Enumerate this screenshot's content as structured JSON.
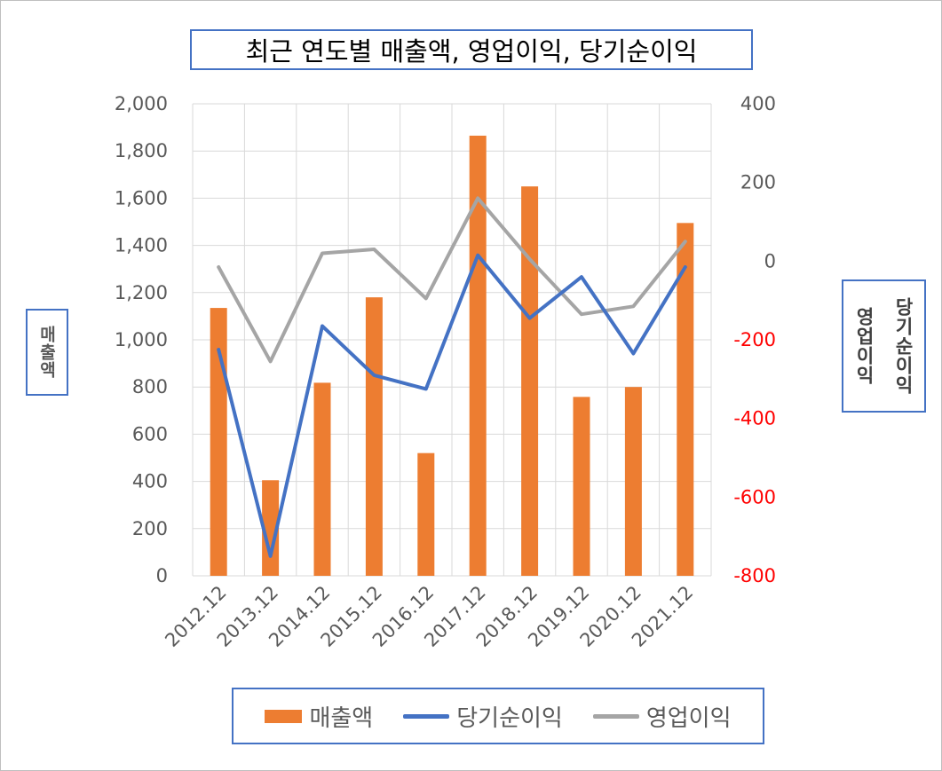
{
  "chart_data": {
    "type": "bar",
    "title": "최근 연도별 매출액, 영업이익, 당기순이익",
    "categories": [
      "2012.12",
      "2013.12",
      "2014.12",
      "2015.12",
      "2016.12",
      "2017.12",
      "2018.12",
      "2019.12",
      "2020.12",
      "2021.12"
    ],
    "left_axis": {
      "label": "매출액",
      "ylim": [
        0,
        2000
      ],
      "ticks": [
        "0",
        "200",
        "400",
        "600",
        "800",
        "1,000",
        "1,200",
        "1,400",
        "1,600",
        "1,800",
        "2,000"
      ]
    },
    "right_axis": {
      "label_lines": [
        "당기순이익",
        "영업이익"
      ],
      "ylim": [
        -800,
        400
      ],
      "ticks": [
        "-800",
        "-600",
        "-400",
        "-200",
        "0",
        "200",
        "400"
      ],
      "negative_color": "#ff0000"
    },
    "series": [
      {
        "name": "매출액",
        "kind": "bar",
        "axis": "left",
        "color": "#ed7d31",
        "values": [
          1135,
          405,
          818,
          1180,
          520,
          1865,
          1650,
          758,
          800,
          1495
        ]
      },
      {
        "name": "당기순이익",
        "kind": "line",
        "axis": "right",
        "color": "#4472c4",
        "values": [
          -225,
          -750,
          -165,
          -290,
          -325,
          15,
          -145,
          -40,
          -235,
          -15
        ]
      },
      {
        "name": "영업이익",
        "kind": "line",
        "axis": "right",
        "color": "#a5a5a5",
        "values": [
          -15,
          -255,
          20,
          30,
          -95,
          160,
          5,
          -135,
          -115,
          50
        ]
      }
    ],
    "grid": true,
    "legend_position": "bottom"
  }
}
